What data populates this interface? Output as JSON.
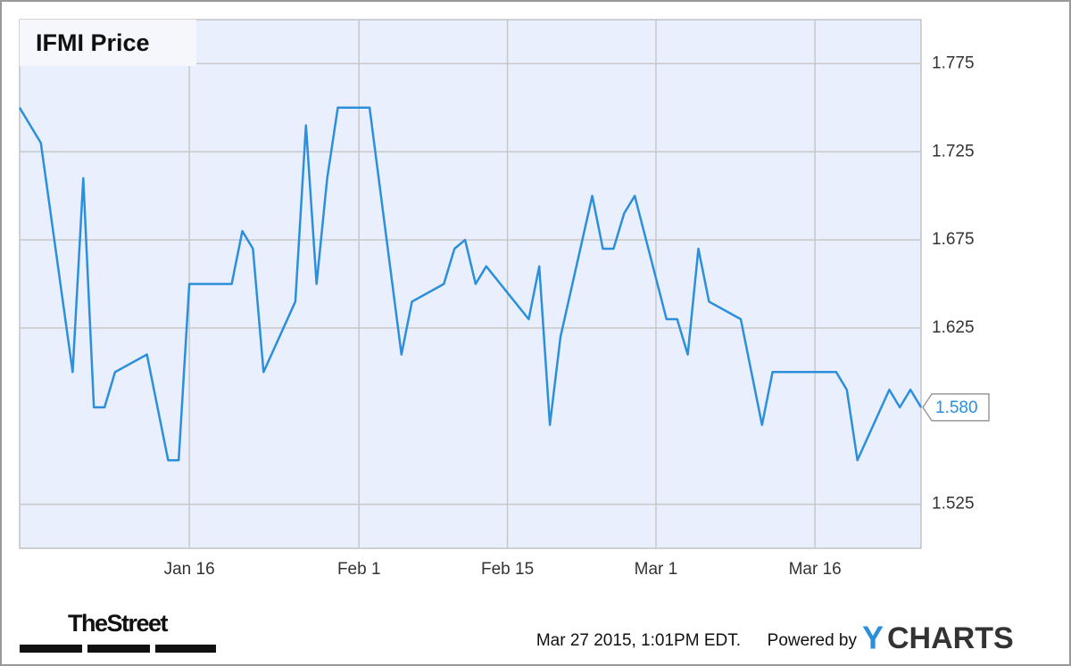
{
  "chart_data": {
    "type": "line",
    "title": "IFMI Price",
    "x": [
      "Dec 31",
      "Jan 2",
      "Jan 5",
      "Jan 6",
      "Jan 7",
      "Jan 8",
      "Jan 9",
      "Jan 12",
      "Jan 14",
      "Jan 15",
      "Jan 16",
      "Jan 20",
      "Jan 21",
      "Jan 22",
      "Jan 23",
      "Jan 26",
      "Jan 27",
      "Jan 28",
      "Jan 29",
      "Jan 30",
      "Feb 2",
      "Feb 5",
      "Feb 6",
      "Feb 9",
      "Feb 10",
      "Feb 11",
      "Feb 12",
      "Feb 13",
      "Feb 17",
      "Feb 18",
      "Feb 19",
      "Feb 20",
      "Feb 23",
      "Feb 24",
      "Feb 25",
      "Feb 26",
      "Feb 27",
      "Mar 2",
      "Mar 3",
      "Mar 4",
      "Mar 5",
      "Mar 6",
      "Mar 9",
      "Mar 11",
      "Mar 12",
      "Mar 18",
      "Mar 19",
      "Mar 20",
      "Mar 23",
      "Mar 24",
      "Mar 25",
      "Mar 26"
    ],
    "series": [
      {
        "name": "IFMI Price",
        "color": "#2b8fdc",
        "values": [
          1.75,
          1.73,
          1.6,
          1.71,
          1.58,
          1.58,
          1.6,
          1.61,
          1.55,
          1.55,
          1.65,
          1.65,
          1.68,
          1.67,
          1.6,
          1.64,
          1.74,
          1.65,
          1.71,
          1.75,
          1.75,
          1.61,
          1.64,
          1.65,
          1.67,
          1.675,
          1.65,
          1.66,
          1.63,
          1.66,
          1.57,
          1.62,
          1.7,
          1.67,
          1.67,
          1.69,
          1.7,
          1.63,
          1.63,
          1.61,
          1.67,
          1.64,
          1.63,
          1.57,
          1.6,
          1.6,
          1.59,
          1.55,
          1.59,
          1.58,
          1.59,
          1.58
        ]
      }
    ],
    "last_price": {
      "value": 1.58,
      "label": "1.580"
    },
    "xlim": [
      "Dec 31",
      "Mar 26"
    ],
    "xticks": [
      "Jan 16",
      "Feb 1",
      "Feb 15",
      "Mar 1",
      "Mar 16"
    ],
    "ylim": [
      1.5,
      1.8
    ],
    "yticks": [
      1.525,
      1.625,
      1.675,
      1.725,
      1.775
    ],
    "grid": true,
    "footer": {
      "source_logo": "TheStreet",
      "timestamp": "Mar 27 2015, 1:01PM EDT.",
      "powered_by": "Powered by",
      "brand_y": "Y",
      "brand_rest": "CHARTS"
    }
  }
}
